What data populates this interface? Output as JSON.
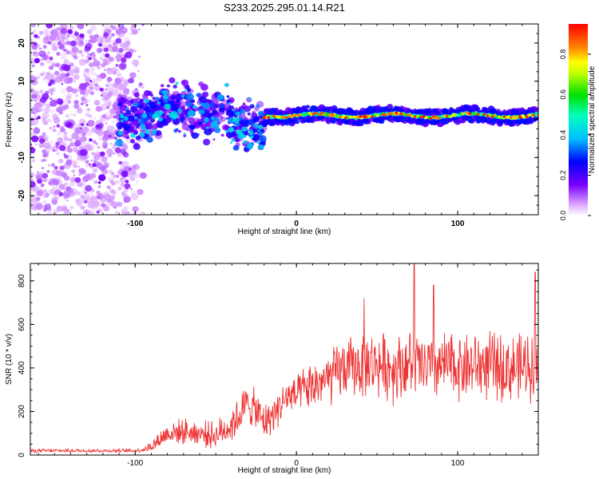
{
  "title": "S233.2025.295.01.14.R21",
  "colors": {
    "snr_line": "#ee3333",
    "background": "#ffffff",
    "axis": "#000000"
  },
  "chart_data": [
    {
      "type": "heatmap",
      "title": "S233.2025.295.01.14.R21",
      "xlabel": "Height of straight line (km)",
      "ylabel": "Frequency (Hz)",
      "xlim": [
        -165,
        150
      ],
      "ylim": [
        -25,
        25
      ],
      "xticks": [
        {
          "v": -100,
          "label": "-100"
        },
        {
          "v": 0,
          "label": "0"
        },
        {
          "v": 100,
          "label": "100"
        }
      ],
      "yticks": [
        {
          "v": -20,
          "label": "-20"
        },
        {
          "v": -10,
          "label": "-10"
        },
        {
          "v": 0,
          "label": "0"
        },
        {
          "v": 10,
          "label": "10"
        },
        {
          "v": 20,
          "label": "20"
        }
      ],
      "colorbar": {
        "label": "Normalized spectral amplitude",
        "range": [
          0,
          0.95
        ],
        "ticks": [
          {
            "v": 0.0,
            "label": "0.0"
          },
          {
            "v": 0.2,
            "label": "0.2"
          },
          {
            "v": 0.4,
            "label": "0.4"
          },
          {
            "v": 0.6,
            "label": "0.6"
          },
          {
            "v": 0.8,
            "label": "0.8"
          }
        ],
        "colormap": "rainbow (white-violet-blue-cyan-green-yellow-red)"
      },
      "features": [
        {
          "name": "noise region",
          "x_range": [
            -165,
            -95
          ],
          "freq_range": [
            -25,
            25
          ],
          "amplitude": 0.05
        },
        {
          "name": "transition blobs",
          "x_range": [
            -110,
            -20
          ],
          "freq_center": [
            0,
            5,
            2,
            -2
          ],
          "amplitude": 0.2
        },
        {
          "name": "signal line",
          "x_range": [
            -20,
            150
          ],
          "freq_center": 1,
          "freq_width": 2,
          "amplitude": 0.85
        }
      ]
    },
    {
      "type": "line",
      "xlabel": "Height of straight line (km)",
      "ylabel": "SNR (10 * v/v)",
      "xlim": [
        -165,
        150
      ],
      "ylim": [
        0,
        880
      ],
      "xticks": [
        {
          "v": -100,
          "label": "-100"
        },
        {
          "v": 0,
          "label": "0"
        },
        {
          "v": 100,
          "label": "100"
        }
      ],
      "yticks": [
        {
          "v": 0,
          "label": "0"
        },
        {
          "v": 200,
          "label": "200"
        },
        {
          "v": 400,
          "label": "400"
        },
        {
          "v": 600,
          "label": "600"
        },
        {
          "v": 800,
          "label": "800"
        }
      ],
      "series": [
        {
          "name": "SNR",
          "x": [
            -165,
            -150,
            -135,
            -120,
            -110,
            -100,
            -95,
            -90,
            -85,
            -80,
            -70,
            -60,
            -50,
            -40,
            -35,
            -30,
            -25,
            -20,
            -15,
            -10,
            -5,
            0,
            5,
            10,
            15,
            20,
            25,
            30,
            40,
            50,
            60,
            70,
            80,
            90,
            100,
            110,
            120,
            130,
            140,
            145,
            150
          ],
          "values": [
            20,
            20,
            20,
            20,
            20,
            20,
            25,
            40,
            70,
            100,
            110,
            100,
            90,
            140,
            190,
            240,
            200,
            150,
            180,
            230,
            270,
            270,
            300,
            310,
            340,
            340,
            380,
            400,
            410,
            420,
            400,
            420,
            400,
            410,
            410,
            410,
            410,
            400,
            400,
            420,
            440
          ],
          "amplitude": [
            8,
            8,
            8,
            8,
            8,
            8,
            10,
            25,
            40,
            50,
            55,
            55,
            60,
            80,
            90,
            90,
            90,
            80,
            80,
            80,
            90,
            80,
            100,
            110,
            110,
            120,
            130,
            130,
            140,
            140,
            150,
            150,
            150,
            150,
            150,
            150,
            150,
            150,
            150,
            160,
            170
          ],
          "peaks": [
            {
              "x": 73,
              "y": 880
            },
            {
              "x": 148,
              "y": 840
            },
            {
              "x": 85,
              "y": 780
            },
            {
              "x": 42,
              "y": 720
            }
          ]
        }
      ]
    }
  ]
}
